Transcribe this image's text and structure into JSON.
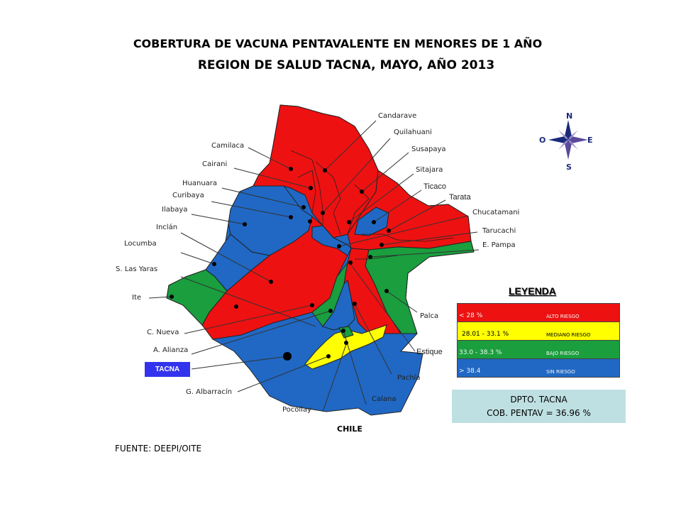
{
  "title_line1": "COBERTURA DE VACUNA PENTAVALENTE EN MENORES DE 1 AÑO",
  "title_line2": "REGION DE SALUD TACNA, MAYO,  AÑO 2013",
  "colors": {
    "alto_riesgo": "#ee1111",
    "mediano_riesgo": "#ffff00",
    "bajo_riesgo": "#1a9e3e",
    "sin_riesgo": "#2068c4",
    "tacna_box": "#3333ee",
    "dpto_box": "#bfe0e3"
  },
  "districts": {
    "candarave": "Candarave",
    "quilahuani": "Quilahuani",
    "susapaya": "Susapaya",
    "camilaca": "Camilaca",
    "cairani": "Cairani",
    "sitajara": "Sitajara",
    "ticaco": "Ticaco",
    "tarata": "Tarata",
    "huanuara": "Huanuara",
    "curibaya": "Curibaya",
    "ilabaya": "Ilabaya",
    "chucatamani": "Chucatamani",
    "inclan": "Inclán",
    "tarucachi": "Tarucachi",
    "locumba": "Locumba",
    "e_pampa": "E. Pampa",
    "s_las_yaras": "S. Las Yaras",
    "ite": "Ite",
    "palca": "Palca",
    "c_nueva": "C. Nueva",
    "a_alianza": "A. Alianza",
    "estique": "Estique",
    "tacna": "TACNA",
    "pachia": "Pachía",
    "g_albarracin": "G. Albarracín",
    "calana": "Calana",
    "pocollay": "Pocollay"
  },
  "chile": "CHILE",
  "fuente": "FUENTE: DEEPI/OITE",
  "compass": {
    "n": "N",
    "s": "S",
    "e": "E",
    "o": "O"
  },
  "legend": {
    "title": "LEYENDA",
    "rows": [
      {
        "range": "< 28 %",
        "desc": "ALTO RIESGO",
        "color": "#ee1111"
      },
      {
        "range": "28.01 - 33.1 %",
        "desc": "MEDIANO RIESGO",
        "color": "#ffff00"
      },
      {
        "range": "33.0 - 38.3 %",
        "desc": "BAJO RIESGO",
        "color": "#1a9e3e"
      },
      {
        "range": "> 38.4",
        "desc": "SIN RIESGO",
        "color": "#2068c4"
      }
    ]
  },
  "dpto": {
    "line1": "DPTO. TACNA",
    "line2": "COB. PENTAV =  36.96 %"
  }
}
